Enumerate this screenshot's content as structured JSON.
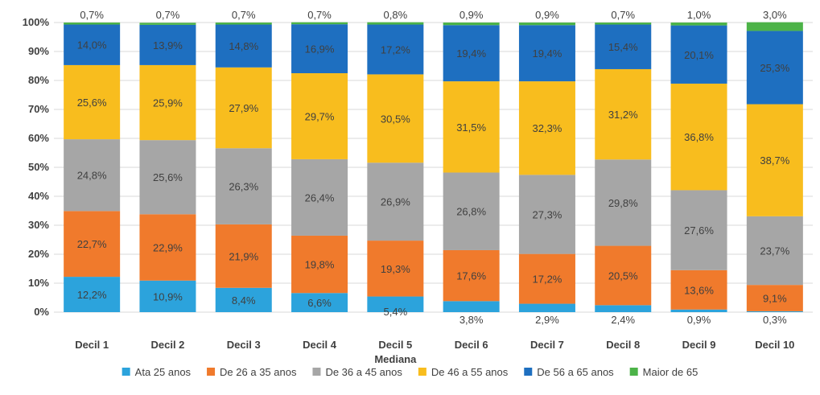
{
  "chart_data": {
    "type": "bar",
    "stacked": true,
    "percent_stacked": true,
    "categories": [
      "Decil 1",
      "Decil 2",
      "Decil 3",
      "Decil 4",
      "Decil 5",
      "Decil 6",
      "Decil 7",
      "Decil 8",
      "Decil 9",
      "Decil 10"
    ],
    "category_sublabels": [
      "",
      "",
      "",
      "",
      "Mediana",
      "",
      "",
      "",
      "",
      ""
    ],
    "ylim": [
      0,
      100
    ],
    "yticks": [
      "0%",
      "10%",
      "20%",
      "30%",
      "40%",
      "50%",
      "60%",
      "70%",
      "80%",
      "90%",
      "100%"
    ],
    "grid": true,
    "legend_position": "bottom",
    "series": [
      {
        "name": "Ata 25 anos",
        "color": "#2CA3DC",
        "values": [
          12.2,
          10.9,
          8.4,
          6.6,
          5.4,
          3.8,
          2.9,
          2.4,
          0.9,
          0.3
        ],
        "labels": [
          "12,2%",
          "10,9%",
          "8,4%",
          "6,6%",
          "5,4%",
          "3,8%",
          "2,9%",
          "2,4%",
          "0,9%",
          "0,3%"
        ]
      },
      {
        "name": "De 26 a 35 anos",
        "color": "#F07A2C",
        "values": [
          22.7,
          22.9,
          21.9,
          19.8,
          19.3,
          17.6,
          17.2,
          20.5,
          13.6,
          9.1
        ],
        "labels": [
          "22,7%",
          "22,9%",
          "21,9%",
          "19,8%",
          "19,3%",
          "17,6%",
          "17,2%",
          "20,5%",
          "13,6%",
          "9,1%"
        ]
      },
      {
        "name": "De 36 a 45 anos",
        "color": "#A6A6A6",
        "values": [
          24.8,
          25.6,
          26.3,
          26.4,
          26.9,
          26.8,
          27.3,
          29.8,
          27.6,
          23.7
        ],
        "labels": [
          "24,8%",
          "25,6%",
          "26,3%",
          "26,4%",
          "26,9%",
          "26,8%",
          "27,3%",
          "29,8%",
          "27,6%",
          "23,7%"
        ]
      },
      {
        "name": "De 46 a 55 anos",
        "color": "#F8BD1E",
        "values": [
          25.6,
          25.9,
          27.9,
          29.7,
          30.5,
          31.5,
          32.3,
          31.2,
          36.8,
          38.7
        ],
        "labels": [
          "25,6%",
          "25,9%",
          "27,9%",
          "29,7%",
          "30,5%",
          "31,5%",
          "32,3%",
          "31,2%",
          "36,8%",
          "38,7%"
        ]
      },
      {
        "name": "De 56 a 65 anos",
        "color": "#1E6FC0",
        "values": [
          14.0,
          13.9,
          14.8,
          16.9,
          17.2,
          19.4,
          19.4,
          15.4,
          20.1,
          25.3
        ],
        "labels": [
          "14,0%",
          "13,9%",
          "14,8%",
          "16,9%",
          "17,2%",
          "19,4%",
          "19,4%",
          "15,4%",
          "20,1%",
          "25,3%"
        ]
      },
      {
        "name": "Maior de 65",
        "color": "#4CB348",
        "values": [
          0.7,
          0.7,
          0.7,
          0.7,
          0.8,
          0.9,
          0.9,
          0.7,
          1.0,
          3.0
        ],
        "labels": [
          "0,7%",
          "0,7%",
          "0,7%",
          "0,7%",
          "0,8%",
          "0,9%",
          "0,9%",
          "0,7%",
          "1,0%",
          "3,0%"
        ]
      }
    ]
  }
}
